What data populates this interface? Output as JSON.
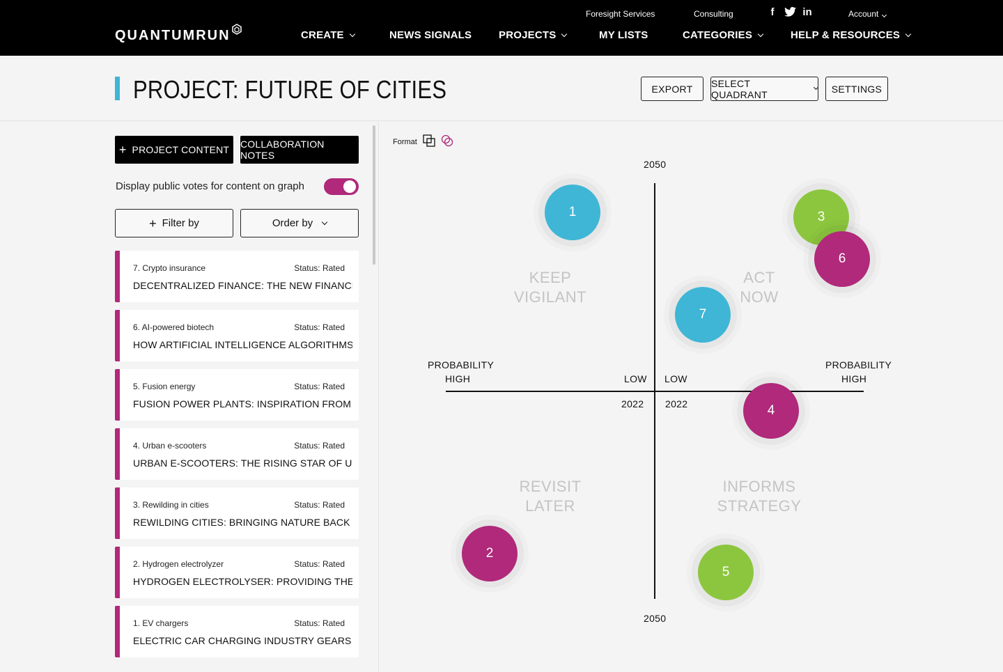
{
  "nav": {
    "logo": "QUANTUMRUN",
    "util": {
      "foresight": "Foresight Services",
      "consulting": "Consulting",
      "account": "Account"
    },
    "social": {
      "facebook": "f",
      "twitter": "t",
      "linkedin": "in"
    },
    "main": {
      "create": "CREATE",
      "news": "NEWS SIGNALS",
      "projects": "PROJECTS",
      "mylists": "MY LISTS",
      "categories": "CATEGORIES",
      "help": "HELP & RESOURCES"
    }
  },
  "header": {
    "title": "PROJECT: FUTURE OF CITIES",
    "export": "EXPORT",
    "select_quadrant": "SELECT QUADRANT",
    "settings": "SETTINGS",
    "accent_color": "#3fb6d6"
  },
  "left": {
    "project_content": "PROJECT CONTENT",
    "collaboration_notes": "COLLABORATION NOTES",
    "toggle_label": "Display public votes for content on graph",
    "toggle_on": true,
    "filter_by": "Filter by",
    "order_by": "Order by",
    "cards": [
      {
        "sub": "7. Crypto insurance",
        "status": "Status: Rated",
        "headline": "DECENTRALIZED FINANCE: THE NEW FINANCE..."
      },
      {
        "sub": "6. AI-powered biotech",
        "status": "Status: Rated",
        "headline": "HOW ARTIFICIAL INTELLIGENCE ALGORITHMS..."
      },
      {
        "sub": "5. Fusion energy",
        "status": "Status: Rated",
        "headline": "FUSION POWER PLANTS: INSPIRATION FROM THE..."
      },
      {
        "sub": "4. Urban e-scooters",
        "status": "Status: Rated",
        "headline": "URBAN E-SCOOTERS: THE RISING STAR OF URBAN..."
      },
      {
        "sub": "3. Rewilding in cities",
        "status": "Status: Rated",
        "headline": "REWILDING CITIES: BRINGING NATURE BACK INTO..."
      },
      {
        "sub": "2. Hydrogen electrolyzer",
        "status": "Status: Rated",
        "headline": "HYDROGEN ELECTROLYSER: PROVIDING THE FUEL..."
      },
      {
        "sub": "1. EV chargers",
        "status": "Status: Rated",
        "headline": "ELECTRIC CAR CHARGING INDUSTRY GEARS UP..."
      }
    ]
  },
  "graph": {
    "format_label": "Format",
    "top_year": "2050",
    "bottom_year": "2050",
    "left_prob": "PROBABILITY",
    "left_high": "HIGH",
    "left_low": "LOW",
    "left_2022": "2022",
    "right_low": "LOW",
    "right_2022": "2022",
    "right_prob": "PROBABILITY",
    "right_high": "HIGH",
    "quadrants": {
      "tl": [
        "KEEP",
        "VIGILANT"
      ],
      "tr": [
        "ACT",
        "NOW"
      ],
      "bl": [
        "REVISIT",
        "LATER"
      ],
      "br": [
        "INFORMS",
        "STRATEGY"
      ]
    },
    "colors": {
      "blue": "#3fb6d6",
      "green": "#8cc63f",
      "magenta": "#b0297a"
    },
    "bubbles": [
      {
        "label": "1",
        "color": "blue"
      },
      {
        "label": "3",
        "color": "green"
      },
      {
        "label": "6",
        "color": "magenta"
      },
      {
        "label": "7",
        "color": "blue"
      },
      {
        "label": "4",
        "color": "magenta"
      },
      {
        "label": "2",
        "color": "magenta"
      },
      {
        "label": "5",
        "color": "green"
      }
    ]
  }
}
